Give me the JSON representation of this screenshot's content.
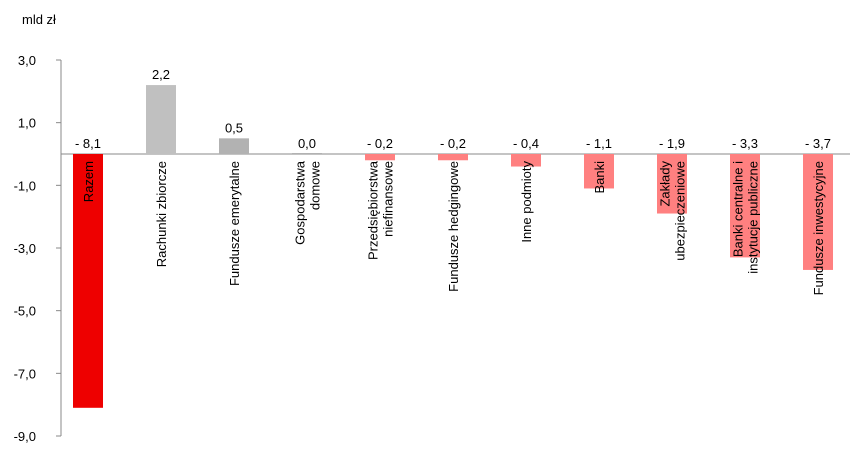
{
  "chart_data": {
    "type": "bar",
    "unit_label": "mld zł",
    "ylim": [
      -9.0,
      3.0
    ],
    "y_ticks": [
      3.0,
      1.0,
      -1.0,
      -3.0,
      -5.0,
      -7.0,
      -9.0
    ],
    "y_tick_labels": [
      "3,0",
      "1,0",
      "-1,0",
      "-3,0",
      "-5,0",
      "-7,0",
      "-9,0"
    ],
    "grid": false,
    "legend": "none",
    "categories": [
      "Razem",
      "Rachunki zbiorcze",
      "Fundusze emerytalne",
      "Gospodarstwa domowe",
      "Przedsiębiorstwa niefinansowe",
      "Fundusze hedgingowe",
      "Inne podmioty",
      "Banki",
      "Zakłady ubezpieczeniowe",
      "Banki centralne i instytucje publiczne",
      "Fundusze inwestycyjne"
    ],
    "category_label_lines": [
      [
        "Razem"
      ],
      [
        "Rachunki zbiorcze"
      ],
      [
        "Fundusze emerytalne"
      ],
      [
        "Gospodarstwa",
        "domowe"
      ],
      [
        "Przedsiębiorstwa",
        "niefinansowe"
      ],
      [
        "Fundusze hedgingowe"
      ],
      [
        "Inne podmioty"
      ],
      [
        "Banki"
      ],
      [
        "Zakłady",
        "ubezpieczeniowe"
      ],
      [
        "Banki centralne i",
        "instytucje publiczne"
      ],
      [
        "Fundusze inwestycyjne"
      ]
    ],
    "values": [
      -8.1,
      2.2,
      0.5,
      0.0,
      -0.2,
      -0.2,
      -0.4,
      -1.1,
      -1.9,
      -3.3,
      -3.7
    ],
    "value_labels": [
      "- 8,1",
      "2,2",
      "0,5",
      "0,0",
      "- 0,2",
      "- 0,2",
      "- 0,4",
      "- 1,1",
      "- 1,9",
      "- 3,3",
      "- 3,7"
    ],
    "colors": [
      "#ee0000",
      "#c0c0c0",
      "#b2b2b2",
      "#b2b2b2",
      "#ff8080",
      "#ff8080",
      "#ff8080",
      "#ff8080",
      "#ff8080",
      "#ff8080",
      "#ff8080"
    ]
  }
}
